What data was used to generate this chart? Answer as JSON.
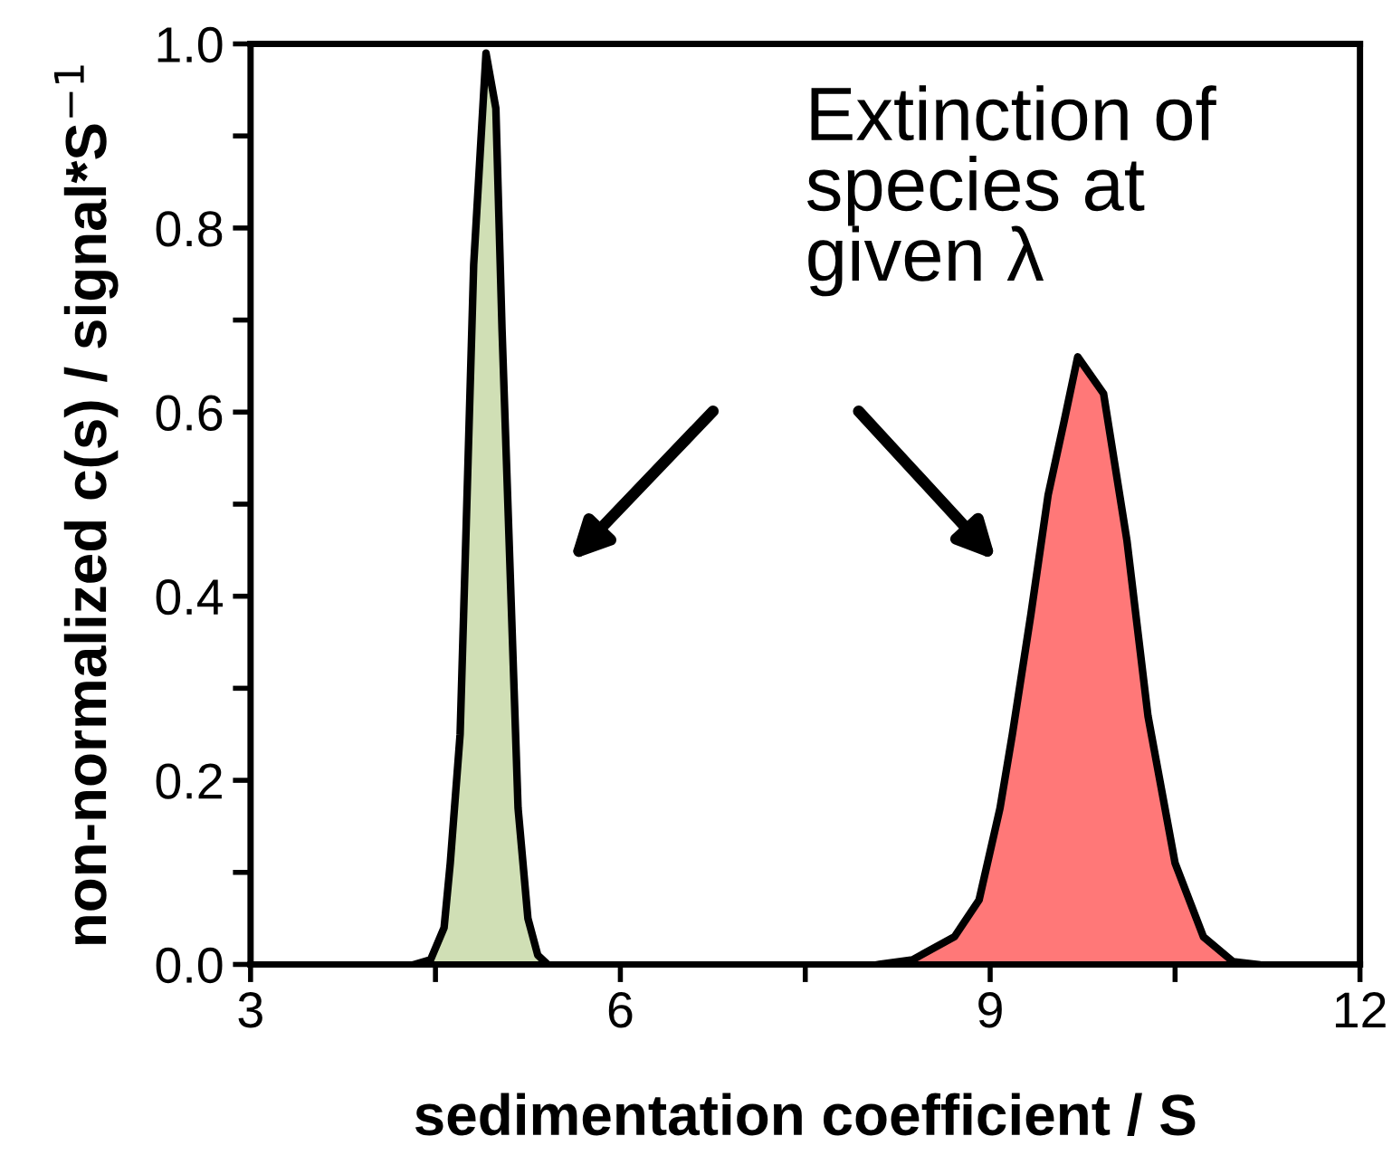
{
  "chart_data": {
    "type": "area",
    "xlabel": "sedimentation coefficient / S",
    "ylabel": "non-normalized c(s) / signal*S$^{−1}$",
    "annotations": [
      "Extinction of\nspecies at\ngiven λ"
    ],
    "series": [
      {
        "color": "#d0dfb5",
        "x": [
          4.33,
          4.46,
          4.57,
          4.62,
          4.7,
          4.75,
          4.81,
          4.91,
          4.99,
          5.04,
          5.11,
          5.17,
          5.25,
          5.33,
          5.41
        ],
        "values": [
          0,
          0.005,
          0.04,
          0.11,
          0.25,
          0.48,
          0.76,
          0.99,
          0.93,
          0.69,
          0.41,
          0.17,
          0.05,
          0.01,
          0
        ]
      },
      {
        "color": "#ff7878",
        "x": [
          8.1,
          8.37,
          8.71,
          8.91,
          9.08,
          9.18,
          9.33,
          9.47,
          9.6,
          9.71,
          9.92,
          10.11,
          10.28,
          10.5,
          10.73,
          10.97,
          11.16
        ],
        "values": [
          0,
          0.005,
          0.03,
          0.07,
          0.17,
          0.25,
          0.38,
          0.51,
          0.59,
          0.66,
          0.62,
          0.46,
          0.27,
          0.11,
          0.03,
          0.003,
          0
        ]
      }
    ],
    "xlim": [
      3,
      12
    ],
    "xticks": [
      3,
      {
        "value": 4.5,
        "label": null
      },
      6,
      {
        "value": 7.5,
        "label": null
      },
      9,
      {
        "value": 10.5,
        "label": null
      },
      12
    ],
    "ylim": [
      0,
      1.0
    ],
    "yticks": [
      "0.0",
      {
        "value": 0.1,
        "label": null
      },
      {
        "value": 0.2,
        "label": "0.2"
      },
      {
        "value": 0.3,
        "label": null
      },
      {
        "value": 0.4,
        "label": "0.4"
      },
      {
        "value": 0.5,
        "label": null
      },
      {
        "value": 0.6,
        "label": "0.6"
      },
      {
        "value": 0.7,
        "label": null
      },
      {
        "value": 0.8,
        "label": "0.8"
      },
      {
        "value": 0.9,
        "label": null
      },
      {
        "value": 1.0,
        "label": "1.0"
      }
    ],
    "grid": false,
    "legend": false
  }
}
